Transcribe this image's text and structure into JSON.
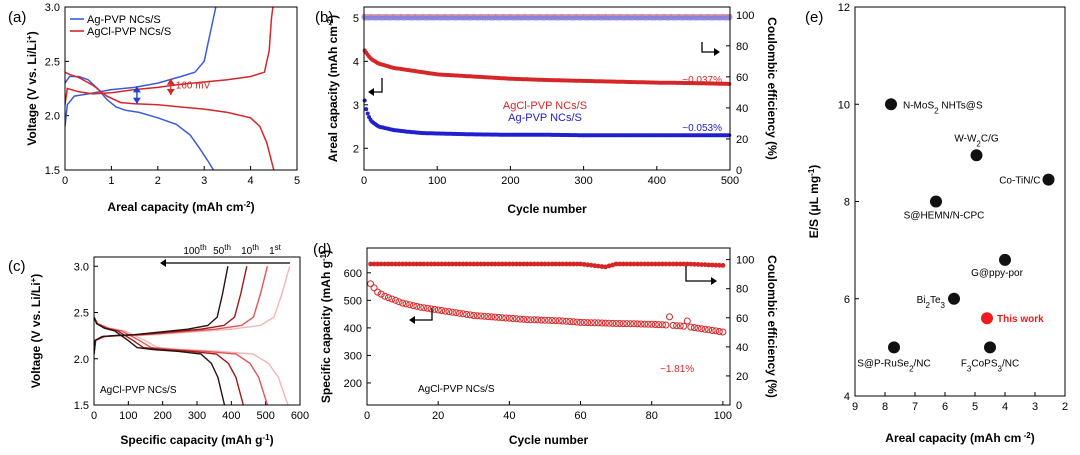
{
  "chart_data": [
    {
      "panel": "(a)",
      "type": "line",
      "xlabel": "Areal capacity (mAh cm-2)",
      "ylabel": "Voltage (V vs. Li/Li+)",
      "xlim": [
        0,
        5
      ],
      "ylim": [
        1.5,
        3.0
      ],
      "xticks": [
        "0",
        "1",
        "2",
        "3",
        "4",
        "5"
      ],
      "yticks": [
        "1.5",
        "2.0",
        "2.5",
        "3.0"
      ],
      "annotation": "160 mV",
      "legend_position": "top-left",
      "series": [
        {
          "name": "Ag-PVP NCs/S",
          "color": "#3b5bdb",
          "segment": "discharge",
          "points": [
            [
              0,
              2.3
            ],
            [
              0.1,
              2.36
            ],
            [
              0.3,
              2.36
            ],
            [
              0.5,
              2.33
            ],
            [
              0.7,
              2.25
            ],
            [
              0.9,
              2.15
            ],
            [
              1.1,
              2.08
            ],
            [
              1.3,
              2.05
            ],
            [
              1.6,
              2.03
            ],
            [
              2.0,
              1.98
            ],
            [
              2.4,
              1.92
            ],
            [
              2.7,
              1.82
            ],
            [
              2.9,
              1.7
            ],
            [
              3.1,
              1.57
            ],
            [
              3.2,
              1.5
            ]
          ]
        },
        {
          "name": "Ag-PVP NCs/S",
          "color": "#3b5bdb",
          "segment": "charge",
          "points": [
            [
              0,
              1.9
            ],
            [
              0.05,
              2.1
            ],
            [
              0.2,
              2.18
            ],
            [
              0.5,
              2.2
            ],
            [
              1.0,
              2.24
            ],
            [
              1.5,
              2.26
            ],
            [
              2.0,
              2.3
            ],
            [
              2.5,
              2.36
            ],
            [
              2.8,
              2.4
            ],
            [
              3.0,
              2.5
            ],
            [
              3.1,
              2.7
            ],
            [
              3.2,
              2.9
            ],
            [
              3.25,
              3.0
            ]
          ]
        },
        {
          "name": "AgCl-PVP NCs/S",
          "color": "#d62728",
          "segment": "discharge",
          "points": [
            [
              0,
              2.4
            ],
            [
              0.1,
              2.38
            ],
            [
              0.3,
              2.35
            ],
            [
              0.6,
              2.28
            ],
            [
              0.9,
              2.18
            ],
            [
              1.2,
              2.12
            ],
            [
              1.5,
              2.11
            ],
            [
              2.0,
              2.1
            ],
            [
              2.5,
              2.08
            ],
            [
              3.0,
              2.06
            ],
            [
              3.5,
              2.03
            ],
            [
              4.0,
              1.98
            ],
            [
              4.2,
              1.9
            ],
            [
              4.35,
              1.75
            ],
            [
              4.5,
              1.5
            ]
          ]
        },
        {
          "name": "AgCl-PVP NCs/S",
          "color": "#d62728",
          "segment": "charge",
          "points": [
            [
              0,
              2.1
            ],
            [
              0.05,
              2.25
            ],
            [
              0.3,
              2.22
            ],
            [
              0.6,
              2.2
            ],
            [
              1.0,
              2.21
            ],
            [
              1.5,
              2.24
            ],
            [
              2.0,
              2.26
            ],
            [
              2.5,
              2.29
            ],
            [
              3.0,
              2.31
            ],
            [
              3.5,
              2.33
            ],
            [
              4.0,
              2.36
            ],
            [
              4.3,
              2.4
            ],
            [
              4.4,
              2.6
            ],
            [
              4.45,
              2.9
            ],
            [
              4.48,
              3.0
            ]
          ]
        }
      ]
    },
    {
      "panel": "(b)",
      "type": "scatter",
      "xlabel": "Cycle number",
      "ylabel": "Areal capacity (mAh cm-2)",
      "y2label": "Coulombic efficiency (%)",
      "xlim": [
        0,
        500
      ],
      "ylim": [
        1.5,
        5.25
      ],
      "y2lim": [
        0,
        105
      ],
      "xticks": [
        "0",
        "100",
        "200",
        "300",
        "400",
        "500"
      ],
      "yticks": [
        "2",
        "3",
        "4",
        "5"
      ],
      "y2ticks": [
        "0",
        "20",
        "40",
        "60",
        "80",
        "100"
      ],
      "legend_position": "center",
      "annotations": [
        "~0.037%",
        "~0.053%"
      ],
      "series": [
        {
          "name": "AgCl-PVP NCs/S",
          "color": "#d62728",
          "x": [
            1,
            5,
            10,
            20,
            40,
            60,
            80,
            100,
            150,
            200,
            250,
            300,
            350,
            400,
            450,
            500
          ],
          "y": [
            4.25,
            4.15,
            4.05,
            3.95,
            3.85,
            3.8,
            3.75,
            3.7,
            3.65,
            3.6,
            3.57,
            3.55,
            3.53,
            3.51,
            3.5,
            3.48
          ]
        },
        {
          "name": "Ag-PVP NCs/S",
          "color": "#2020d0",
          "x": [
            1,
            3,
            6,
            10,
            20,
            40,
            60,
            80,
            100,
            150,
            200,
            250,
            300,
            350,
            400,
            450,
            500
          ],
          "y": [
            3.1,
            2.9,
            2.75,
            2.62,
            2.5,
            2.42,
            2.38,
            2.35,
            2.34,
            2.32,
            2.31,
            2.31,
            2.3,
            2.3,
            2.3,
            2.3,
            2.3
          ]
        },
        {
          "name": "CE AgCl-PVP",
          "color": "#e89090",
          "axis": "y2",
          "x": [
            0,
            100,
            200,
            300,
            400,
            500
          ],
          "y": [
            99,
            99,
            99,
            99,
            99,
            99
          ]
        },
        {
          "name": "CE Ag-PVP",
          "color": "#8080e0",
          "axis": "y2",
          "x": [
            0,
            100,
            200,
            300,
            400,
            500
          ],
          "y": [
            98,
            98,
            98,
            98,
            98,
            98
          ]
        }
      ]
    },
    {
      "panel": "(c)",
      "type": "line",
      "xlabel": "Specific capacity (mAh g-1)",
      "ylabel": "Voltage (V vs. Li/Li+)",
      "xlim": [
        0,
        600
      ],
      "ylim": [
        1.5,
        3.1
      ],
      "xticks": [
        "0",
        "100",
        "200",
        "300",
        "400",
        "500",
        "600"
      ],
      "yticks": [
        "1.5",
        "2.0",
        "2.5",
        "3.0"
      ],
      "inset_label": "AgCl-PVP NCs/S",
      "cycle_labels": [
        "100th",
        "50th",
        "10th",
        "1st"
      ],
      "series": [
        {
          "name": "1st",
          "color": "#f4b5b5",
          "dcap": 565,
          "ccap": 570
        },
        {
          "name": "10th",
          "color": "#e05555",
          "dcap": 505,
          "ccap": 505
        },
        {
          "name": "50th",
          "color": "#a01818",
          "dcap": 435,
          "ccap": 445
        },
        {
          "name": "100th",
          "color": "#2a1010",
          "dcap": 380,
          "ccap": 390
        }
      ]
    },
    {
      "panel": "(d)",
      "type": "scatter",
      "xlabel": "Cycle number",
      "ylabel": "Specific capacity (mAh g-1)",
      "y2label": "Coulombic efficiency (%)",
      "xlim": [
        0,
        102
      ],
      "ylim": [
        120,
        690
      ],
      "y2lim": [
        0,
        108
      ],
      "xticks": [
        "0",
        "20",
        "40",
        "60",
        "80",
        "100"
      ],
      "yticks": [
        "200",
        "300",
        "400",
        "500",
        "600"
      ],
      "y2ticks": [
        "0",
        "20",
        "40",
        "60",
        "80",
        "100"
      ],
      "inset_label": "AgCl-PVP NCs/S",
      "annotation": "~1.81%",
      "series": [
        {
          "name": "Specific capacity",
          "color": "#d62728",
          "x": [
            1,
            2,
            3,
            5,
            8,
            10,
            15,
            20,
            25,
            30,
            35,
            40,
            45,
            50,
            55,
            60,
            65,
            70,
            75,
            80,
            85,
            90,
            95,
            100
          ],
          "y": [
            560,
            545,
            530,
            515,
            500,
            490,
            475,
            465,
            455,
            445,
            440,
            435,
            430,
            428,
            425,
            420,
            418,
            416,
            415,
            413,
            410,
            405,
            395,
            385
          ]
        },
        {
          "name": "Coulombic efficiency",
          "color": "#d62728",
          "axis": "y2",
          "x": [
            1,
            20,
            40,
            60,
            67,
            70,
            80,
            90,
            100
          ],
          "y": [
            97,
            97,
            97,
            97,
            95,
            97,
            97,
            97,
            96
          ]
        }
      ]
    },
    {
      "panel": "(e)",
      "type": "scatter",
      "xlabel": "Areal capacity (mAh cm-2)",
      "ylabel": "E/S (μL mg-1)",
      "xlim": [
        9,
        2
      ],
      "ylim": [
        4,
        12
      ],
      "xticks": [
        "9",
        "8",
        "7",
        "6",
        "5",
        "4",
        "3",
        "2"
      ],
      "yticks": [
        "4",
        "6",
        "8",
        "10",
        "12"
      ],
      "points": [
        {
          "label": "N-MoS2 NHTs@S",
          "x": 7.8,
          "y": 10.0,
          "color": "#111111"
        },
        {
          "label": "W-W2C/G",
          "x": 4.95,
          "y": 8.95,
          "color": "#111111"
        },
        {
          "label": "Co-TiN/C",
          "x": 2.55,
          "y": 8.45,
          "color": "#111111"
        },
        {
          "label": "S@HEMN/N-CPC",
          "x": 6.3,
          "y": 8.0,
          "color": "#111111"
        },
        {
          "label": "G@ppy-por",
          "x": 4.0,
          "y": 6.8,
          "color": "#111111"
        },
        {
          "label": "Bi2Te3",
          "x": 5.7,
          "y": 6.0,
          "color": "#111111"
        },
        {
          "label": "This work",
          "x": 4.6,
          "y": 5.6,
          "color": "#ee1c1c"
        },
        {
          "label": "S@P-RuSe2/NC",
          "x": 7.7,
          "y": 5.0,
          "color": "#111111"
        },
        {
          "label": "F3CoPS3/NC",
          "x": 4.5,
          "y": 5.0,
          "color": "#111111"
        }
      ]
    }
  ]
}
